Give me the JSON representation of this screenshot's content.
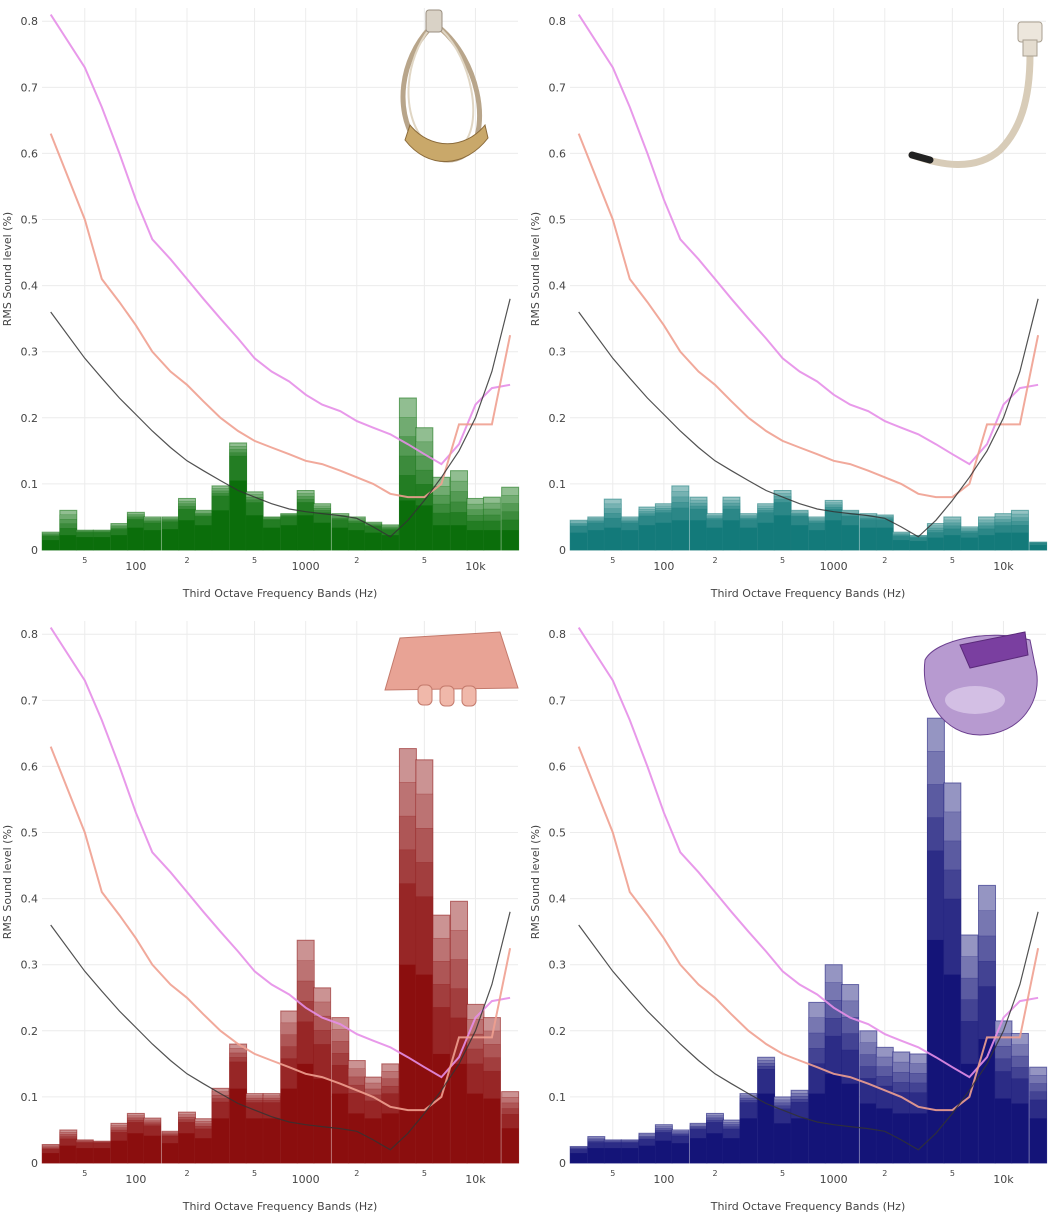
{
  "chart_data": [
    {
      "type": "bar",
      "xlabel": "Third Octave Frequency Bands (Hz)",
      "ylabel": "RMS Sound level (%)",
      "xscale": "log",
      "ylim": [
        0,
        0.82
      ],
      "yticks": [
        "0",
        "0.1",
        "0.2",
        "0.3",
        "0.4",
        "0.5",
        "0.6",
        "0.7",
        "0.8"
      ],
      "xticks": [
        {
          "f": 50,
          "label": "5"
        },
        {
          "f": 100,
          "label": "100"
        },
        {
          "f": 200,
          "label": "2"
        },
        {
          "f": 500,
          "label": "5"
        },
        {
          "f": 1000,
          "label": "1000"
        },
        {
          "f": 2000,
          "label": "2"
        },
        {
          "f": 5000,
          "label": "5"
        },
        {
          "f": 10000,
          "label": "10k"
        }
      ],
      "bar_color": "#0b6e0b",
      "photo": "nasal-cannula-photo",
      "bands": [
        31.5,
        40,
        50,
        63,
        80,
        100,
        125,
        160,
        200,
        250,
        315,
        400,
        500,
        630,
        800,
        1000,
        1250,
        1600,
        2000,
        2500,
        3150,
        4000,
        5000,
        6300,
        8000,
        10000,
        12500,
        16000
      ],
      "bar_max": [
        0.027,
        0.06,
        0.03,
        0.03,
        0.04,
        0.057,
        0.05,
        0.05,
        0.078,
        0.06,
        0.097,
        0.162,
        0.088,
        0.05,
        0.055,
        0.09,
        0.07,
        0.055,
        0.05,
        0.042,
        0.038,
        0.23,
        0.185,
        0.11,
        0.12,
        0.078,
        0.08,
        0.095
      ],
      "bar_min": [
        0.02,
        0.03,
        0.026,
        0.026,
        0.03,
        0.045,
        0.04,
        0.042,
        0.06,
        0.05,
        0.08,
        0.14,
        0.07,
        0.045,
        0.05,
        0.07,
        0.055,
        0.045,
        0.04,
        0.035,
        0.03,
        0.1,
        0.09,
        0.05,
        0.05,
        0.04,
        0.04,
        0.04
      ]
    },
    {
      "type": "bar",
      "xlabel": "Third Octave Frequency Bands (Hz)",
      "ylabel": "RMS Sound level (%)",
      "xscale": "log",
      "ylim": [
        0,
        0.82
      ],
      "yticks": [
        "0",
        "0.1",
        "0.2",
        "0.3",
        "0.4",
        "0.5",
        "0.6",
        "0.7",
        "0.8"
      ],
      "xticks": [
        {
          "f": 50,
          "label": "5"
        },
        {
          "f": 100,
          "label": "100"
        },
        {
          "f": 200,
          "label": "2"
        },
        {
          "f": 500,
          "label": "5"
        },
        {
          "f": 1000,
          "label": "1000"
        },
        {
          "f": 2000,
          "label": "2"
        },
        {
          "f": 5000,
          "label": "5"
        },
        {
          "f": 10000,
          "label": "10k"
        }
      ],
      "bar_color": "#137a7a",
      "photo": "endotracheal-tube-photo",
      "bands": [
        31.5,
        40,
        50,
        63,
        80,
        100,
        125,
        160,
        200,
        250,
        315,
        400,
        500,
        630,
        800,
        1000,
        1250,
        1600,
        2000,
        2500,
        3150,
        4000,
        5000,
        6300,
        8000,
        10000,
        12500,
        16000
      ],
      "bar_max": [
        0.045,
        0.05,
        0.077,
        0.05,
        0.065,
        0.07,
        0.097,
        0.08,
        0.055,
        0.08,
        0.055,
        0.07,
        0.09,
        0.06,
        0.05,
        0.075,
        0.06,
        0.055,
        0.053,
        0.027,
        0.022,
        0.04,
        0.05,
        0.035,
        0.05,
        0.055,
        0.06,
        0.012
      ],
      "bar_min": [
        0.035,
        0.04,
        0.045,
        0.04,
        0.05,
        0.055,
        0.06,
        0.06,
        0.045,
        0.06,
        0.045,
        0.055,
        0.07,
        0.05,
        0.04,
        0.06,
        0.05,
        0.045,
        0.045,
        0.02,
        0.018,
        0.025,
        0.03,
        0.025,
        0.03,
        0.035,
        0.035,
        0.01
      ]
    },
    {
      "type": "bar",
      "xlabel": "Third Octave Frequency Bands (Hz)",
      "ylabel": "RMS Sound level (%)",
      "xscale": "log",
      "ylim": [
        0,
        0.82
      ],
      "yticks": [
        "0",
        "0.1",
        "0.2",
        "0.3",
        "0.4",
        "0.5",
        "0.6",
        "0.7",
        "0.8"
      ],
      "xticks": [
        {
          "f": 50,
          "label": "5"
        },
        {
          "f": 100,
          "label": "100"
        },
        {
          "f": 200,
          "label": "2"
        },
        {
          "f": 500,
          "label": "5"
        },
        {
          "f": 1000,
          "label": "1000"
        },
        {
          "f": 2000,
          "label": "2"
        },
        {
          "f": 5000,
          "label": "5"
        },
        {
          "f": 10000,
          "label": "10k"
        }
      ],
      "bar_color": "#8b0e0e",
      "photo": "nasal-prong-photo",
      "bands": [
        31.5,
        40,
        50,
        63,
        80,
        100,
        125,
        160,
        200,
        250,
        315,
        400,
        500,
        630,
        800,
        1000,
        1250,
        1600,
        2000,
        2500,
        3150,
        4000,
        5000,
        6300,
        8000,
        10000,
        12500,
        16000
      ],
      "bar_max": [
        0.028,
        0.05,
        0.035,
        0.033,
        0.06,
        0.075,
        0.068,
        0.048,
        0.077,
        0.067,
        0.113,
        0.18,
        0.105,
        0.105,
        0.23,
        0.337,
        0.265,
        0.22,
        0.155,
        0.13,
        0.15,
        0.627,
        0.61,
        0.375,
        0.396,
        0.24,
        0.22,
        0.108
      ],
      "bar_min": [
        0.02,
        0.035,
        0.03,
        0.03,
        0.045,
        0.06,
        0.055,
        0.04,
        0.06,
        0.05,
        0.09,
        0.15,
        0.09,
        0.09,
        0.15,
        0.2,
        0.17,
        0.14,
        0.1,
        0.09,
        0.1,
        0.4,
        0.38,
        0.22,
        0.2,
        0.14,
        0.13,
        0.07
      ]
    },
    {
      "type": "bar",
      "xlabel": "Third Octave Frequency Bands (Hz)",
      "ylabel": "RMS Sound level (%)",
      "xscale": "log",
      "ylim": [
        0,
        0.82
      ],
      "yticks": [
        "0",
        "0.1",
        "0.2",
        "0.3",
        "0.4",
        "0.5",
        "0.6",
        "0.7",
        "0.8"
      ],
      "xticks": [
        {
          "f": 50,
          "label": "5"
        },
        {
          "f": 100,
          "label": "100"
        },
        {
          "f": 200,
          "label": "2"
        },
        {
          "f": 500,
          "label": "5"
        },
        {
          "f": 1000,
          "label": "1000"
        },
        {
          "f": 2000,
          "label": "2"
        },
        {
          "f": 5000,
          "label": "5"
        },
        {
          "f": 10000,
          "label": "10k"
        }
      ],
      "bar_color": "#141478",
      "photo": "nasal-mask-photo",
      "bands": [
        31.5,
        40,
        50,
        63,
        80,
        100,
        125,
        160,
        200,
        250,
        315,
        400,
        500,
        630,
        800,
        1000,
        1250,
        1600,
        2000,
        2500,
        3150,
        4000,
        5000,
        6300,
        8000,
        10000,
        12500,
        16000
      ],
      "bar_max": [
        0.025,
        0.04,
        0.035,
        0.035,
        0.045,
        0.058,
        0.05,
        0.06,
        0.075,
        0.065,
        0.105,
        0.16,
        0.1,
        0.11,
        0.243,
        0.3,
        0.27,
        0.2,
        0.175,
        0.168,
        0.165,
        0.673,
        0.575,
        0.345,
        0.42,
        0.215,
        0.196,
        0.145
      ],
      "bar_min": [
        0.02,
        0.03,
        0.03,
        0.03,
        0.035,
        0.045,
        0.04,
        0.05,
        0.06,
        0.05,
        0.09,
        0.14,
        0.08,
        0.09,
        0.14,
        0.18,
        0.16,
        0.12,
        0.11,
        0.1,
        0.1,
        0.45,
        0.38,
        0.2,
        0.25,
        0.13,
        0.12,
        0.09
      ]
    }
  ],
  "reference_curves": {
    "magenta": {
      "color": "#e58ee8",
      "x": [
        31.5,
        50,
        63,
        80,
        100,
        125,
        160,
        200,
        250,
        315,
        400,
        500,
        630,
        800,
        1000,
        1250,
        1600,
        2000,
        2500,
        3150,
        4000,
        5000,
        6300,
        8000,
        10000,
        12500,
        16000
      ],
      "y": [
        0.81,
        0.73,
        0.67,
        0.6,
        0.53,
        0.47,
        0.44,
        0.41,
        0.38,
        0.35,
        0.32,
        0.29,
        0.27,
        0.255,
        0.235,
        0.22,
        0.21,
        0.195,
        0.185,
        0.175,
        0.16,
        0.145,
        0.13,
        0.16,
        0.22,
        0.245,
        0.25
      ]
    },
    "salmon": {
      "color": "#f0a090",
      "x": [
        31.5,
        50,
        63,
        80,
        100,
        125,
        160,
        200,
        250,
        315,
        400,
        500,
        630,
        800,
        1000,
        1250,
        1600,
        2000,
        2500,
        3150,
        4000,
        5000,
        6300,
        8000,
        10000,
        12500,
        16000
      ],
      "y": [
        0.63,
        0.5,
        0.41,
        0.375,
        0.34,
        0.3,
        0.27,
        0.25,
        0.225,
        0.2,
        0.18,
        0.165,
        0.155,
        0.145,
        0.135,
        0.13,
        0.12,
        0.11,
        0.1,
        0.085,
        0.08,
        0.08,
        0.1,
        0.19,
        0.19,
        0.19,
        0.325
      ]
    },
    "black": {
      "color": "#333333",
      "x": [
        31.5,
        50,
        63,
        80,
        100,
        125,
        160,
        200,
        250,
        315,
        400,
        500,
        630,
        800,
        1000,
        1250,
        1600,
        2000,
        2500,
        3150,
        4000,
        5000,
        6300,
        8000,
        10000,
        12500,
        16000
      ],
      "y": [
        0.36,
        0.29,
        0.26,
        0.23,
        0.205,
        0.18,
        0.155,
        0.135,
        0.12,
        0.105,
        0.09,
        0.08,
        0.07,
        0.062,
        0.058,
        0.055,
        0.052,
        0.048,
        0.035,
        0.02,
        0.045,
        0.075,
        0.11,
        0.15,
        0.2,
        0.27,
        0.38
      ]
    }
  }
}
